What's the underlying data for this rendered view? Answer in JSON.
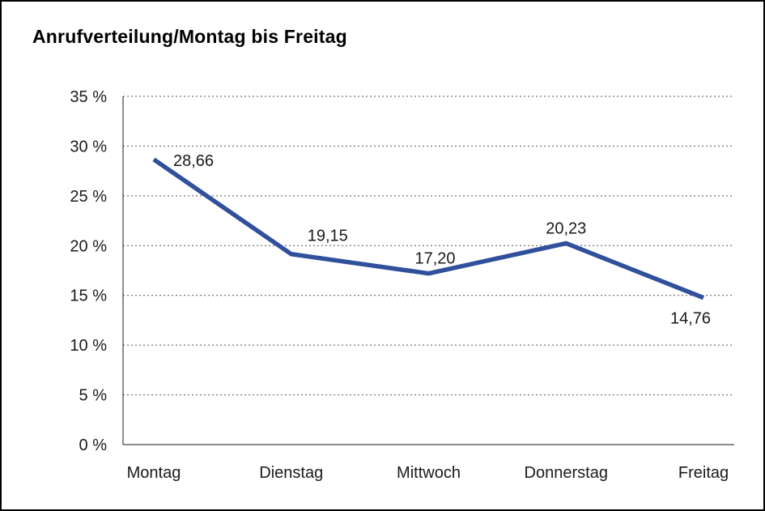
{
  "title": "Anrufverteilung/Montag bis Freitag",
  "colors": {
    "line": "#30509c",
    "grid": "#555555",
    "axis": "#444444",
    "text": "#1a1a1a",
    "border": "#000000",
    "background": "#ffffff"
  },
  "chart_data": {
    "type": "line",
    "title": "Anrufverteilung/Montag bis Freitag",
    "categories": [
      "Montag",
      "Dienstag",
      "Mittwoch",
      "Donnerstag",
      "Freitag"
    ],
    "values": [
      28.66,
      19.15,
      17.2,
      20.23,
      14.76
    ],
    "value_labels": [
      "28,66",
      "19,15",
      "17,20",
      "20,23",
      "14,76"
    ],
    "xlabel": "",
    "ylabel": "",
    "ylim": [
      0,
      35
    ],
    "ytick_step": 5,
    "ytick_suffix": " %",
    "grid": "horizontal-dotted",
    "legend": "none"
  }
}
